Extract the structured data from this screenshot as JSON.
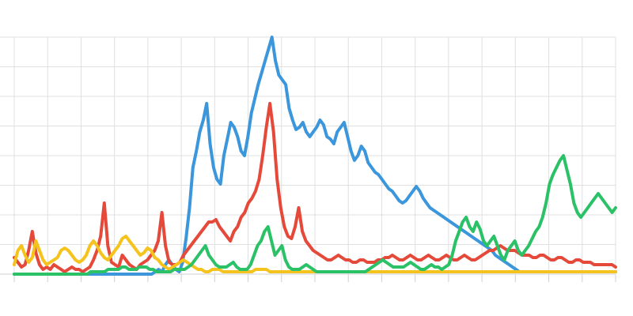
{
  "chart_data": {
    "type": "line",
    "title": "",
    "xlabel": "",
    "ylabel": "",
    "ylim": [
      0,
      100
    ],
    "grid": true,
    "legend": "none",
    "series": [
      {
        "color": "#3b96dc",
        "values": [
          0,
          0,
          0,
          0,
          0,
          0,
          0,
          0,
          0,
          0,
          0,
          0,
          0,
          0,
          0,
          0,
          0,
          0,
          0,
          0,
          0,
          0,
          0,
          0,
          0,
          0,
          0,
          0,
          0,
          0,
          0,
          0,
          0,
          0,
          0,
          0,
          0,
          0,
          0,
          0,
          0,
          1,
          2,
          1,
          4,
          6,
          4,
          2,
          1,
          5,
          15,
          28,
          45,
          52,
          60,
          65,
          72,
          55,
          45,
          40,
          38,
          50,
          57,
          64,
          62,
          58,
          52,
          50,
          58,
          68,
          74,
          80,
          85,
          90,
          95,
          100,
          90,
          84,
          82,
          80,
          70,
          65,
          61,
          62,
          64,
          60,
          58,
          60,
          62,
          65,
          63,
          58,
          57,
          55,
          60,
          62,
          64,
          58,
          52,
          48,
          50,
          54,
          52,
          47,
          45,
          43,
          42,
          40,
          38,
          36,
          35,
          33,
          31,
          30,
          31,
          33,
          35,
          37,
          35,
          32,
          30,
          28,
          27,
          26,
          25,
          24,
          23,
          22,
          21,
          20,
          19,
          18,
          17,
          16,
          15,
          14,
          13,
          12,
          11,
          10,
          8,
          7,
          6,
          5,
          4,
          3,
          2,
          1,
          1,
          1,
          1,
          1,
          1,
          1,
          1,
          1,
          1,
          1,
          1,
          1,
          1,
          1,
          1,
          1,
          1,
          1,
          1,
          1,
          1,
          1,
          1,
          1,
          1,
          1,
          1,
          1
        ]
      },
      {
        "color": "#e5493a",
        "values": [
          7,
          5,
          3,
          4,
          10,
          18,
          9,
          4,
          2,
          3,
          2,
          4,
          3,
          2,
          1,
          2,
          3,
          2,
          2,
          1,
          2,
          3,
          6,
          10,
          16,
          30,
          12,
          5,
          4,
          3,
          8,
          6,
          4,
          3,
          2,
          4,
          5,
          6,
          8,
          10,
          14,
          26,
          12,
          5,
          4,
          4,
          5,
          8,
          10,
          12,
          14,
          16,
          18,
          20,
          22,
          22,
          23,
          20,
          18,
          16,
          14,
          18,
          20,
          24,
          26,
          30,
          32,
          35,
          40,
          50,
          62,
          72,
          60,
          40,
          28,
          20,
          16,
          15,
          20,
          28,
          18,
          14,
          12,
          10,
          9,
          8,
          7,
          6,
          6,
          7,
          8,
          7,
          6,
          6,
          5,
          5,
          6,
          6,
          5,
          5,
          5,
          6,
          6,
          7,
          7,
          8,
          7,
          6,
          6,
          7,
          8,
          7,
          6,
          6,
          7,
          8,
          7,
          6,
          6,
          7,
          8,
          7,
          6,
          6,
          7,
          8,
          7,
          6,
          6,
          7,
          8,
          9,
          10,
          10,
          11,
          12,
          11,
          10,
          10,
          10,
          9,
          8,
          8,
          8,
          7,
          7,
          8,
          8,
          7,
          6,
          6,
          7,
          7,
          6,
          5,
          5,
          6,
          6,
          5,
          5,
          5,
          4,
          4,
          4,
          4,
          4,
          4,
          3
        ]
      },
      {
        "color": "#f5c31d",
        "values": [
          4,
          10,
          12,
          8,
          5,
          7,
          14,
          10,
          6,
          4,
          5,
          6,
          7,
          10,
          11,
          10,
          8,
          6,
          5,
          6,
          8,
          12,
          14,
          12,
          9,
          7,
          6,
          8,
          10,
          12,
          15,
          16,
          14,
          12,
          10,
          8,
          9,
          11,
          10,
          7,
          6,
          4,
          3,
          2,
          3,
          4,
          5,
          6,
          5,
          4,
          3,
          2,
          2,
          1,
          1,
          2,
          2,
          2,
          1,
          1,
          1,
          1,
          1,
          1,
          1,
          1,
          1,
          2,
          2,
          2,
          2,
          1,
          1,
          1,
          1,
          1,
          1,
          1,
          1,
          1,
          1,
          1,
          1,
          1,
          1,
          1,
          1,
          1,
          1,
          1,
          1,
          1,
          1,
          1,
          1,
          1,
          1,
          1,
          1,
          1,
          1,
          1,
          1,
          1,
          1,
          1,
          1,
          1,
          1,
          1,
          1,
          1,
          1,
          1,
          1,
          1,
          1,
          1,
          1,
          1,
          1,
          1,
          1,
          1,
          1,
          1,
          1,
          1,
          1,
          1,
          1,
          1,
          1,
          1,
          1,
          1,
          1,
          1,
          1,
          1,
          1,
          1,
          1,
          1,
          1,
          1,
          1,
          1,
          1,
          1,
          1,
          1,
          1,
          1,
          1,
          1,
          1,
          1,
          1,
          1,
          1,
          1,
          1,
          1,
          1,
          1,
          1,
          1
        ]
      },
      {
        "color": "#2bc166",
        "values": [
          0,
          0,
          0,
          0,
          0,
          0,
          0,
          0,
          0,
          0,
          0,
          0,
          0,
          0,
          0,
          0,
          0,
          0,
          0,
          0,
          0,
          0,
          1,
          1,
          1,
          1,
          1,
          2,
          2,
          2,
          2,
          3,
          3,
          2,
          2,
          2,
          3,
          3,
          3,
          2,
          2,
          1,
          1,
          1,
          1,
          1,
          2,
          2,
          2,
          2,
          3,
          4,
          6,
          8,
          10,
          12,
          8,
          6,
          4,
          3,
          3,
          3,
          4,
          5,
          3,
          2,
          2,
          2,
          4,
          8,
          12,
          14,
          18,
          20,
          14,
          8,
          10,
          12,
          6,
          3,
          2,
          2,
          2,
          3,
          4,
          3,
          2,
          1,
          1,
          1,
          1,
          1,
          1,
          1,
          1,
          1,
          1,
          1,
          1,
          1,
          1,
          1,
          2,
          3,
          4,
          5,
          6,
          5,
          4,
          3,
          3,
          3,
          3,
          4,
          5,
          4,
          3,
          2,
          2,
          3,
          4,
          3,
          3,
          2,
          3,
          4,
          8,
          14,
          18,
          22,
          24,
          20,
          18,
          22,
          19,
          14,
          12,
          14,
          16,
          12,
          8,
          6,
          10,
          12,
          14,
          10,
          8,
          10,
          12,
          15,
          18,
          20,
          24,
          30,
          38,
          42,
          45,
          48,
          50,
          44,
          38,
          30,
          26,
          24,
          26,
          28,
          30,
          32,
          34,
          32,
          30,
          28,
          26,
          28
        ]
      }
    ]
  }
}
